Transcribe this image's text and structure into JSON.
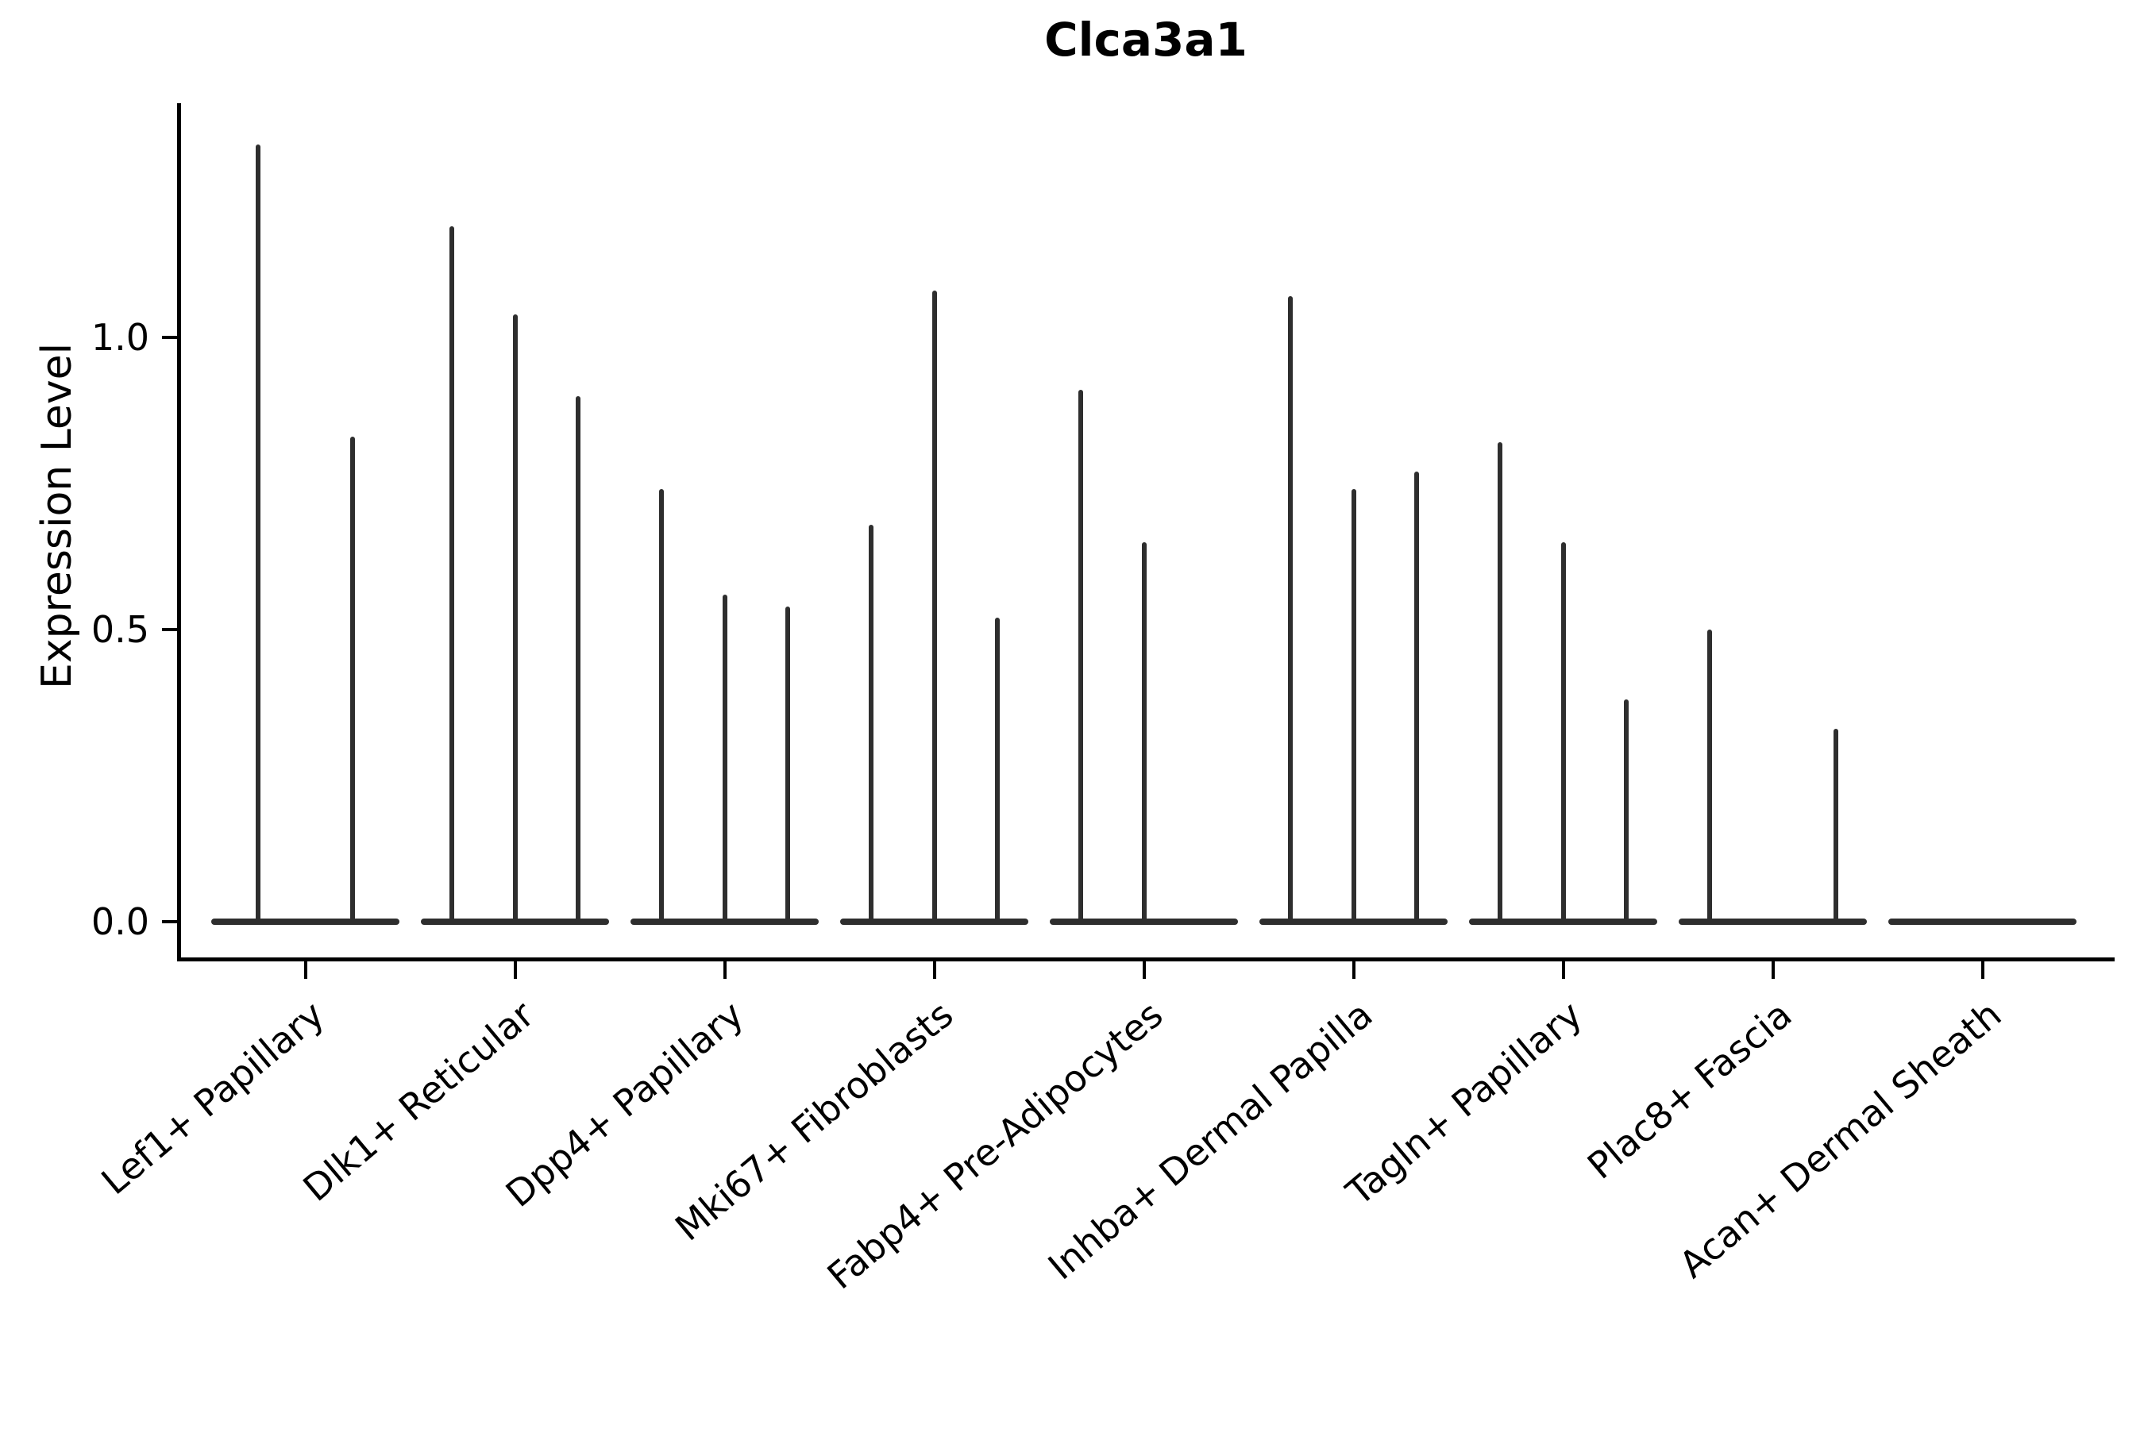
{
  "chart_data": {
    "type": "violin",
    "title": "Clca3a1",
    "ylabel": "Expression Level",
    "xlabel": "",
    "ylim": [
      -0.06,
      1.4
    ],
    "yticks": [
      "0.0",
      "0.5",
      "1.0"
    ],
    "ytick_values": [
      0.0,
      0.5,
      1.0
    ],
    "grid": false,
    "legend": "none",
    "violin_color": "#2e2e2e",
    "description": "Ultra-thin violins: flat density base at expression 0 with a narrow spike up to the max expression value; one violin per sample, grouped by cell type",
    "categories": [
      {
        "label": "Lef1+ Papillary",
        "peaks": [
          1.33,
          0.83
        ]
      },
      {
        "label": "Dlk1+ Reticular",
        "peaks": [
          1.19,
          1.04,
          0.9
        ]
      },
      {
        "label": "Dpp4+ Papillary",
        "peaks": [
          0.74,
          0.56,
          0.54
        ]
      },
      {
        "label": "Mki67+ Fibroblasts",
        "peaks": [
          0.68,
          1.08,
          0.52
        ]
      },
      {
        "label": "Fabp4+ Pre-Adipocytes",
        "peaks": [
          0.91,
          0.65,
          0
        ]
      },
      {
        "label": "Inhba+ Dermal Papilla",
        "peaks": [
          1.07,
          0.74,
          0.77
        ]
      },
      {
        "label": "Tagln+ Papillary",
        "peaks": [
          0.82,
          0.65,
          0.38
        ]
      },
      {
        "label": "Plac8+ Fascia",
        "peaks": [
          0.5,
          0,
          0.33
        ]
      },
      {
        "label": "Acan+ Dermal Sheath",
        "peaks": [
          0,
          0,
          0
        ]
      }
    ]
  }
}
